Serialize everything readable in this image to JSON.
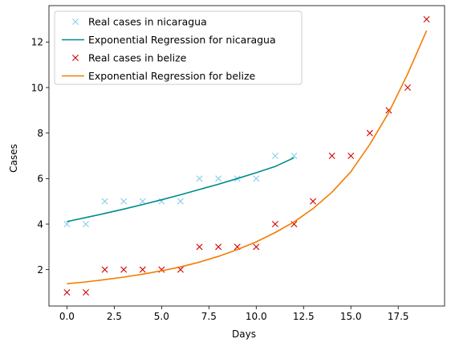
{
  "chart_data": {
    "type": "scatter",
    "title": "",
    "xlabel": "Days",
    "ylabel": "Cases",
    "xlim": [
      -0.95,
      19.95
    ],
    "ylim": [
      0.4,
      13.6
    ],
    "xticks": [
      0.0,
      2.5,
      5.0,
      7.5,
      10.0,
      12.5,
      15.0,
      17.5
    ],
    "xtick_labels": [
      "0.0",
      "2.5",
      "5.0",
      "7.5",
      "10.0",
      "12.5",
      "15.0",
      "17.5"
    ],
    "yticks": [
      2,
      4,
      6,
      8,
      10,
      12
    ],
    "ytick_labels": [
      "2",
      "4",
      "6",
      "8",
      "10",
      "12"
    ],
    "grid": false,
    "legend_position": "top-left",
    "series": [
      {
        "name": "Real cases in nicaragua",
        "kind": "scatter",
        "marker": "x",
        "color": "#87ceeb",
        "x": [
          0,
          1,
          2,
          3,
          4,
          5,
          6,
          7,
          8,
          9,
          10,
          11,
          12
        ],
        "y": [
          4,
          4,
          5,
          5,
          5,
          5,
          5,
          6,
          6,
          6,
          6,
          7,
          7
        ]
      },
      {
        "name": "Exponential Regression for nicaragua",
        "kind": "line",
        "color": "#008b8b",
        "x": [
          0,
          1,
          2,
          3,
          4,
          5,
          6,
          7,
          8,
          9,
          10,
          11,
          12
        ],
        "y": [
          4.11,
          4.29,
          4.47,
          4.66,
          4.86,
          5.07,
          5.29,
          5.52,
          5.75,
          6.0,
          6.26,
          6.53,
          6.92
        ]
      },
      {
        "name": "Real cases in belize",
        "kind": "scatter",
        "marker": "x",
        "color": "#d40000",
        "x": [
          0,
          1,
          2,
          3,
          4,
          5,
          6,
          7,
          8,
          9,
          10,
          11,
          12,
          13,
          14,
          15,
          16,
          17,
          18,
          19
        ],
        "y": [
          1,
          1,
          2,
          2,
          2,
          2,
          2,
          3,
          3,
          3,
          3,
          4,
          4,
          5,
          7,
          7,
          8,
          9,
          10,
          13
        ]
      },
      {
        "name": "Exponential Regression for belize",
        "kind": "line",
        "color": "#f57c00",
        "x": [
          0,
          1,
          2,
          3,
          4,
          5,
          6,
          7,
          8,
          9,
          10,
          11,
          12,
          13,
          14,
          15,
          16,
          17,
          18,
          19
        ],
        "y": [
          1.38,
          1.46,
          1.56,
          1.67,
          1.8,
          1.95,
          2.12,
          2.33,
          2.58,
          2.88,
          3.22,
          3.63,
          4.1,
          4.68,
          5.4,
          6.3,
          7.5,
          8.9,
          10.6,
          12.5
        ]
      }
    ]
  }
}
